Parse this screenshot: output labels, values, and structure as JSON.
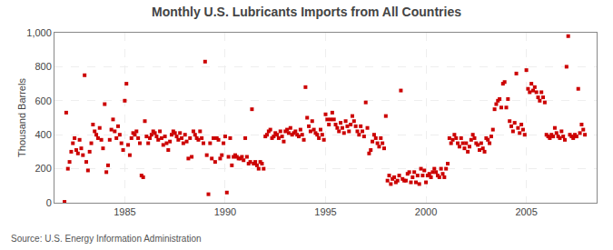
{
  "chart_data": {
    "type": "scatter",
    "title": "Monthly U.S. Lubricants Imports from All Countries",
    "ylabel": "Thousand Barrels",
    "annotations": [
      "Source: U.S. Energy Information Administration"
    ],
    "color": "#cc0000",
    "marker": "square",
    "grid": true,
    "xlim": [
      1981.5,
      2008.5
    ],
    "xticks": [
      1985,
      1990,
      1995,
      2000,
      2005
    ],
    "ylim": [
      0,
      1000
    ],
    "yticks": [
      0,
      200,
      400,
      600,
      800,
      {
        "value": 1000,
        "label": "1,000"
      }
    ],
    "x": [
      1982,
      1982.0833333333333,
      1982.1666666666667,
      1982.25,
      1982.3333333333333,
      1982.4166666666667,
      1982.5,
      1982.5833333333333,
      1982.6666666666667,
      1982.75,
      1982.8333333333333,
      1982.9166666666667,
      1983,
      1983.0833333333333,
      1983.1666666666667,
      1983.25,
      1983.3333333333333,
      1983.4166666666667,
      1983.5,
      1983.5833333333333,
      1983.6666666666667,
      1983.75,
      1983.8333333333333,
      1983.9166666666667,
      1984,
      1984.0833333333333,
      1984.1666666666667,
      1984.25,
      1984.3333333333333,
      1984.4166666666667,
      1984.5,
      1984.5833333333333,
      1984.6666666666667,
      1984.75,
      1984.8333333333333,
      1984.9166666666667,
      1985,
      1985.0833333333333,
      1985.1666666666667,
      1985.25,
      1985.3333333333333,
      1985.4166666666667,
      1985.5,
      1985.5833333333333,
      1985.6666666666667,
      1985.75,
      1985.8333333333333,
      1985.9166666666667,
      1986,
      1986.0833333333333,
      1986.1666666666667,
      1986.25,
      1986.3333333333333,
      1986.4166666666667,
      1986.5,
      1986.5833333333333,
      1986.6666666666667,
      1986.75,
      1986.8333333333333,
      1986.9166666666667,
      1987,
      1987.0833333333333,
      1987.1666666666667,
      1987.25,
      1987.3333333333333,
      1987.4166666666667,
      1987.5,
      1987.5833333333333,
      1987.6666666666667,
      1987.75,
      1987.8333333333333,
      1987.9166666666667,
      1988,
      1988.0833333333333,
      1988.1666666666667,
      1988.25,
      1988.3333333333333,
      1988.4166666666667,
      1988.5,
      1988.5833333333333,
      1988.6666666666667,
      1988.75,
      1988.8333333333333,
      1988.9166666666667,
      1989,
      1989.0833333333333,
      1989.1666666666667,
      1989.25,
      1989.3333333333333,
      1989.4166666666667,
      1989.5,
      1989.5833333333333,
      1989.6666666666667,
      1989.75,
      1989.8333333333333,
      1989.9166666666667,
      1990,
      1990.0833333333333,
      1990.1666666666667,
      1990.25,
      1990.3333333333333,
      1990.4166666666667,
      1990.5,
      1990.5833333333333,
      1990.6666666666667,
      1990.75,
      1990.8333333333333,
      1990.9166666666667,
      1991,
      1991.0833333333333,
      1991.1666666666667,
      1991.25,
      1991.3333333333333,
      1991.4166666666667,
      1991.5,
      1991.5833333333333,
      1991.6666666666667,
      1991.75,
      1991.8333333333333,
      1991.9166666666667,
      1992,
      1992.0833333333333,
      1992.1666666666667,
      1992.25,
      1992.3333333333333,
      1992.4166666666667,
      1992.5,
      1992.5833333333333,
      1992.6666666666667,
      1992.75,
      1992.8333333333333,
      1992.9166666666667,
      1993,
      1993.0833333333333,
      1993.1666666666667,
      1993.25,
      1993.3333333333333,
      1993.4166666666667,
      1993.5,
      1993.5833333333333,
      1993.6666666666667,
      1993.75,
      1993.8333333333333,
      1993.9166666666667,
      1994,
      1994.0833333333333,
      1994.1666666666667,
      1994.25,
      1994.3333333333333,
      1994.4166666666667,
      1994.5,
      1994.5833333333333,
      1994.6666666666667,
      1994.75,
      1994.8333333333333,
      1994.9166666666667,
      1995,
      1995.0833333333333,
      1995.1666666666667,
      1995.25,
      1995.3333333333333,
      1995.4166666666667,
      1995.5,
      1995.5833333333333,
      1995.6666666666667,
      1995.75,
      1995.8333333333333,
      1995.9166666666667,
      1996,
      1996.0833333333333,
      1996.1666666666667,
      1996.25,
      1996.3333333333333,
      1996.4166666666667,
      1996.5,
      1996.5833333333333,
      1996.6666666666667,
      1996.75,
      1996.8333333333333,
      1996.9166666666667,
      1997,
      1997.0833333333333,
      1997.1666666666667,
      1997.25,
      1997.3333333333333,
      1997.4166666666667,
      1997.5,
      1997.5833333333333,
      1997.6666666666667,
      1997.75,
      1997.8333333333333,
      1997.9166666666667,
      1998,
      1998.0833333333333,
      1998.1666666666667,
      1998.25,
      1998.3333333333333,
      1998.4166666666667,
      1998.5,
      1998.5833333333333,
      1998.6666666666667,
      1998.75,
      1998.8333333333333,
      1998.9166666666667,
      1999,
      1999.0833333333333,
      1999.1666666666667,
      1999.25,
      1999.3333333333333,
      1999.4166666666667,
      1999.5,
      1999.5833333333333,
      1999.6666666666667,
      1999.75,
      1999.8333333333333,
      1999.9166666666667,
      2000,
      2000.0833333333333,
      2000.1666666666667,
      2000.25,
      2000.3333333333333,
      2000.4166666666667,
      2000.5,
      2000.5833333333333,
      2000.6666666666667,
      2000.75,
      2000.8333333333333,
      2000.9166666666667,
      2001,
      2001.0833333333333,
      2001.1666666666667,
      2001.25,
      2001.3333333333333,
      2001.4166666666667,
      2001.5,
      2001.5833333333333,
      2001.6666666666667,
      2001.75,
      2001.8333333333333,
      2001.9166666666667,
      2002,
      2002.0833333333333,
      2002.1666666666667,
      2002.25,
      2002.3333333333333,
      2002.4166666666667,
      2002.5,
      2002.5833333333333,
      2002.6666666666667,
      2002.75,
      2002.8333333333333,
      2002.9166666666667,
      2003,
      2003.0833333333333,
      2003.1666666666667,
      2003.25,
      2003.3333333333333,
      2003.4166666666667,
      2003.5,
      2003.5833333333333,
      2003.6666666666667,
      2003.75,
      2003.8333333333333,
      2003.9166666666667,
      2004,
      2004.0833333333333,
      2004.1666666666667,
      2004.25,
      2004.3333333333333,
      2004.4166666666667,
      2004.5,
      2004.5833333333333,
      2004.6666666666667,
      2004.75,
      2004.8333333333333,
      2004.9166666666667,
      2005,
      2005.0833333333333,
      2005.1666666666667,
      2005.25,
      2005.3333333333333,
      2005.4166666666667,
      2005.5,
      2005.5833333333333,
      2005.6666666666667,
      2005.75,
      2005.8333333333333,
      2005.9166666666667,
      2006,
      2006.0833333333333,
      2006.1666666666667,
      2006.25,
      2006.3333333333333,
      2006.4166666666667,
      2006.5,
      2006.5833333333333,
      2006.6666666666667,
      2006.75,
      2006.8333333333333,
      2006.9166666666667,
      2007,
      2007.0833333333333,
      2007.1666666666667,
      2007.25,
      2007.3333333333333,
      2007.4166666666667,
      2007.5,
      2007.5833333333333,
      2007.6666666666667,
      2007.75,
      2007.8333333333333,
      2007.9166666666667
    ],
    "values": [
      5,
      530,
      200,
      240,
      300,
      350,
      380,
      310,
      290,
      370,
      320,
      280,
      750,
      240,
      190,
      300,
      350,
      460,
      420,
      400,
      380,
      440,
      370,
      320,
      580,
      180,
      220,
      370,
      430,
      490,
      420,
      380,
      450,
      400,
      350,
      310,
      600,
      700,
      340,
      280,
      380,
      410,
      400,
      420,
      380,
      350,
      160,
      150,
      480,
      390,
      350,
      380,
      400,
      420,
      410,
      390,
      370,
      420,
      380,
      340,
      390,
      350,
      310,
      360,
      400,
      420,
      410,
      390,
      370,
      410,
      380,
      350,
      400,
      360,
      260,
      380,
      270,
      420,
      400,
      380,
      370,
      420,
      380,
      350,
      830,
      280,
      50,
      350,
      260,
      380,
      240,
      380,
      370,
      260,
      280,
      350,
      390,
      60,
      270,
      380,
      220,
      270,
      280,
      270,
      260,
      260,
      270,
      250,
      380,
      270,
      230,
      240,
      550,
      230,
      240,
      220,
      200,
      240,
      230,
      200,
      390,
      400,
      420,
      430,
      380,
      390,
      410,
      400,
      380,
      420,
      390,
      360,
      420,
      430,
      410,
      440,
      400,
      410,
      420,
      400,
      390,
      430,
      400,
      370,
      680,
      500,
      450,
      420,
      480,
      430,
      410,
      400,
      380,
      430,
      400,
      370,
      520,
      490,
      460,
      490,
      530,
      490,
      460,
      440,
      420,
      470,
      440,
      410,
      480,
      450,
      420,
      460,
      510,
      480,
      450,
      420,
      400,
      450,
      420,
      390,
      590,
      440,
      290,
      310,
      360,
      400,
      380,
      350,
      330,
      380,
      350,
      320,
      510,
      130,
      160,
      110,
      140,
      150,
      120,
      130,
      160,
      660,
      140,
      130,
      130,
      170,
      180,
      120,
      150,
      180,
      120,
      160,
      110,
      200,
      160,
      190,
      120,
      160,
      170,
      150,
      180,
      200,
      180,
      160,
      150,
      200,
      170,
      150,
      200,
      230,
      380,
      350,
      370,
      400,
      380,
      350,
      330,
      380,
      350,
      320,
      350,
      300,
      330,
      370,
      400,
      380,
      350,
      340,
      310,
      350,
      320,
      300,
      380,
      370,
      350,
      390,
      430,
      550,
      580,
      600,
      610,
      560,
      700,
      710,
      560,
      610,
      480,
      450,
      420,
      470,
      760,
      440,
      410,
      460,
      430,
      400,
      780,
      670,
      650,
      700,
      660,
      680,
      650,
      620,
      600,
      650,
      620,
      590,
      400,
      390,
      380,
      400,
      390,
      440,
      410,
      390,
      380,
      420,
      390,
      370,
      800,
      980,
      400,
      390,
      380,
      400,
      390,
      670,
      410,
      460,
      430,
      400
    ]
  }
}
